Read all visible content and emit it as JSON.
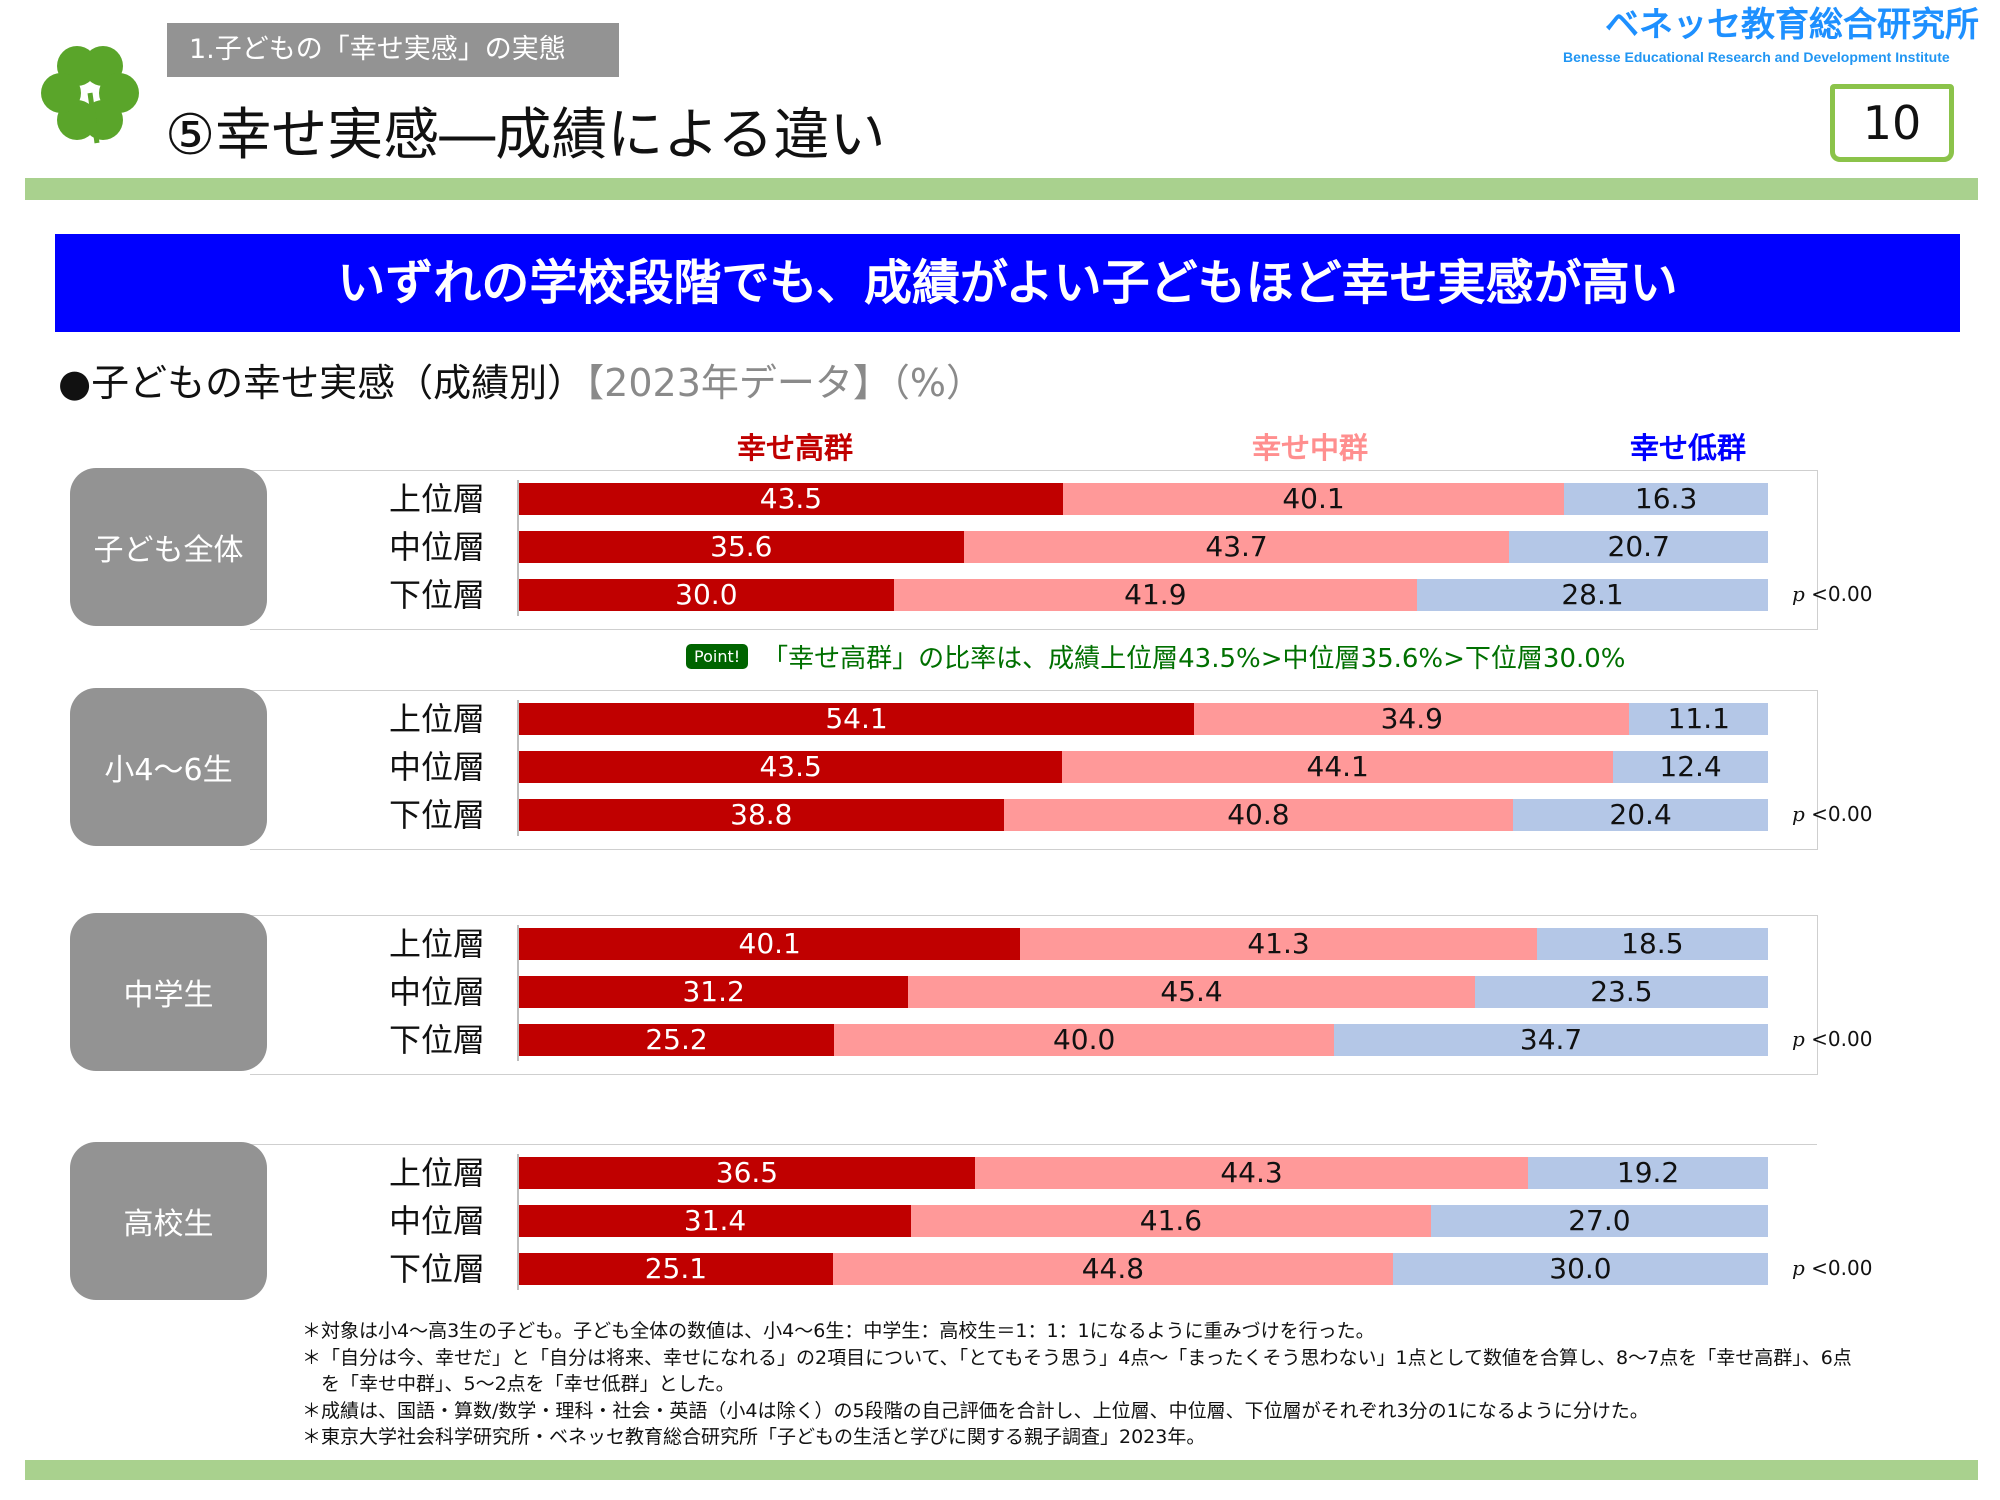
{
  "header": {
    "section": "1.子どもの「幸せ実感」の実態",
    "title": "⑤幸せ実感―成績による違い",
    "logo_jp": "ベネッセ教育総合研究所",
    "logo_en": "Benesse Educational Research and Development Institute",
    "page_number": "10"
  },
  "banner": "いずれの学校段階でも、成績がよい子どもほど幸せ実感が高い",
  "heading": {
    "main": "●子どもの幸せ実感（成績別）",
    "sub": "【2023年データ】（%）"
  },
  "point": {
    "badge": "Point!",
    "text": "「幸せ高群」の比率は、成績上位層43.5%>中位層35.6%>下位層30.0%"
  },
  "chart_data": {
    "type": "bar",
    "stacked": true,
    "orientation": "horizontal",
    "unit": "%",
    "xlim": [
      0,
      100
    ],
    "legend": [
      "幸せ高群",
      "幸せ中群",
      "幸せ低群"
    ],
    "colors": [
      "#c00000",
      "#ff9999",
      "#b4c7e7"
    ],
    "legend_colors": [
      "#c00000",
      "#ff8f8f",
      "#0000ff"
    ],
    "categories": [
      "上位層",
      "中位層",
      "下位層"
    ],
    "groups": [
      {
        "name": "子ども全体",
        "p_label": "<0.00",
        "rows": [
          [
            43.5,
            40.1,
            16.3
          ],
          [
            35.6,
            43.7,
            20.7
          ],
          [
            30.0,
            41.9,
            28.1
          ]
        ]
      },
      {
        "name": "小4～6生",
        "p_label": "<0.00",
        "rows": [
          [
            54.1,
            34.9,
            11.1
          ],
          [
            43.5,
            44.1,
            12.4
          ],
          [
            38.8,
            40.8,
            20.4
          ]
        ]
      },
      {
        "name": "中学生",
        "p_label": "<0.00",
        "rows": [
          [
            40.1,
            41.3,
            18.5
          ],
          [
            31.2,
            45.4,
            23.5
          ],
          [
            25.2,
            40.0,
            34.7
          ]
        ]
      },
      {
        "name": "高校生",
        "p_label": "<0.00",
        "rows": [
          [
            36.5,
            44.3,
            19.2
          ],
          [
            31.4,
            41.6,
            27.0
          ],
          [
            25.1,
            44.8,
            30.0
          ]
        ]
      }
    ],
    "p_symbol": "p"
  },
  "notes": [
    "＊対象は小4～高3生の子ども。子ども全体の数値は、小4～6生：中学生：高校生＝1：1：1になるように重みづけを行った。",
    "＊「自分は今、幸せだ」と「自分は将来、幸せになれる」の2項目について、「とてもそう思う」4点～「まったくそう思わない」1点として数値を合算し、8～7点を「幸せ高群」、6点",
    "　を「幸せ中群」、5～2点を「幸せ低群」とした。",
    "＊成績は、国語・算数/数学・理科・社会・英語（小4は除く）の5段階の自己評価を合計し、上位層、中位層、下位層がそれぞれ3分の1になるように分けた。",
    "＊東京大学社会科学研究所・ベネッセ教育総合研究所「子どもの生活と学びに関する親子調査」2023年。"
  ]
}
